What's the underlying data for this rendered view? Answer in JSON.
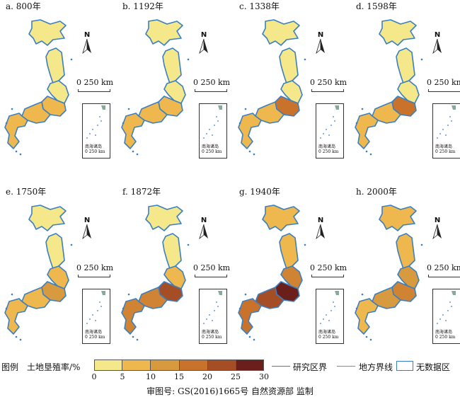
{
  "panels": [
    {
      "title": "a. 800年",
      "fills": [
        "#f4e88a",
        "#f4e88a",
        "#f4e88a",
        "#eeb84e",
        "#eeb84e",
        "#eeb84e"
      ]
    },
    {
      "title": "b. 1192年",
      "fills": [
        "#f4e88a",
        "#f4e88a",
        "#f4e88a",
        "#eeb84e",
        "#eeb84e",
        "#eeb84e"
      ]
    },
    {
      "title": "c. 1338年",
      "fills": [
        "#f4e88a",
        "#f4e88a",
        "#f4e88a",
        "#c9722c",
        "#eeb84e",
        "#eeb84e"
      ]
    },
    {
      "title": "d. 1598年",
      "fills": [
        "#f4e88a",
        "#f4e88a",
        "#f4e88a",
        "#c9722c",
        "#eeb84e",
        "#eeb84e"
      ]
    },
    {
      "title": "e. 1750年",
      "fills": [
        "#f4e88a",
        "#f4e88a",
        "#eeb84e",
        "#d89a3e",
        "#eeb84e",
        "#eeb84e"
      ]
    },
    {
      "title": "f. 1872年",
      "fills": [
        "#f4e88a",
        "#f4e88a",
        "#eeb84e",
        "#a54e25",
        "#d08433",
        "#d08433"
      ]
    },
    {
      "title": "g. 1940年",
      "fills": [
        "#eeb84e",
        "#eeb84e",
        "#d08433",
        "#6b1f1a",
        "#a54e25",
        "#c9722c"
      ]
    },
    {
      "title": "h. 2000年",
      "fills": [
        "#eeb84e",
        "#eeb84e",
        "#d89a3e",
        "#d08433",
        "#d89a3e",
        "#eeb84e"
      ]
    }
  ],
  "north_label": "N",
  "scale_label": "0   250 km",
  "inset_label": "南海诸岛",
  "inset_scale": "0  250 km",
  "legend": {
    "title": "图例",
    "unit": "土地垦殖率/%",
    "bins": [
      "#f4e88a",
      "#eedd72",
      "#eeb84e",
      "#d89a3e",
      "#c9722c",
      "#a54e25",
      "#6b1f1a"
    ],
    "ticks": [
      "0",
      "5",
      "10",
      "15",
      "20",
      "25",
      "30"
    ],
    "boundary_research": "研究区界",
    "boundary_local": "地方界线",
    "no_data": "无数据区"
  },
  "footer": "审图号: GS(2016)1665号    自然资源部 监制"
}
